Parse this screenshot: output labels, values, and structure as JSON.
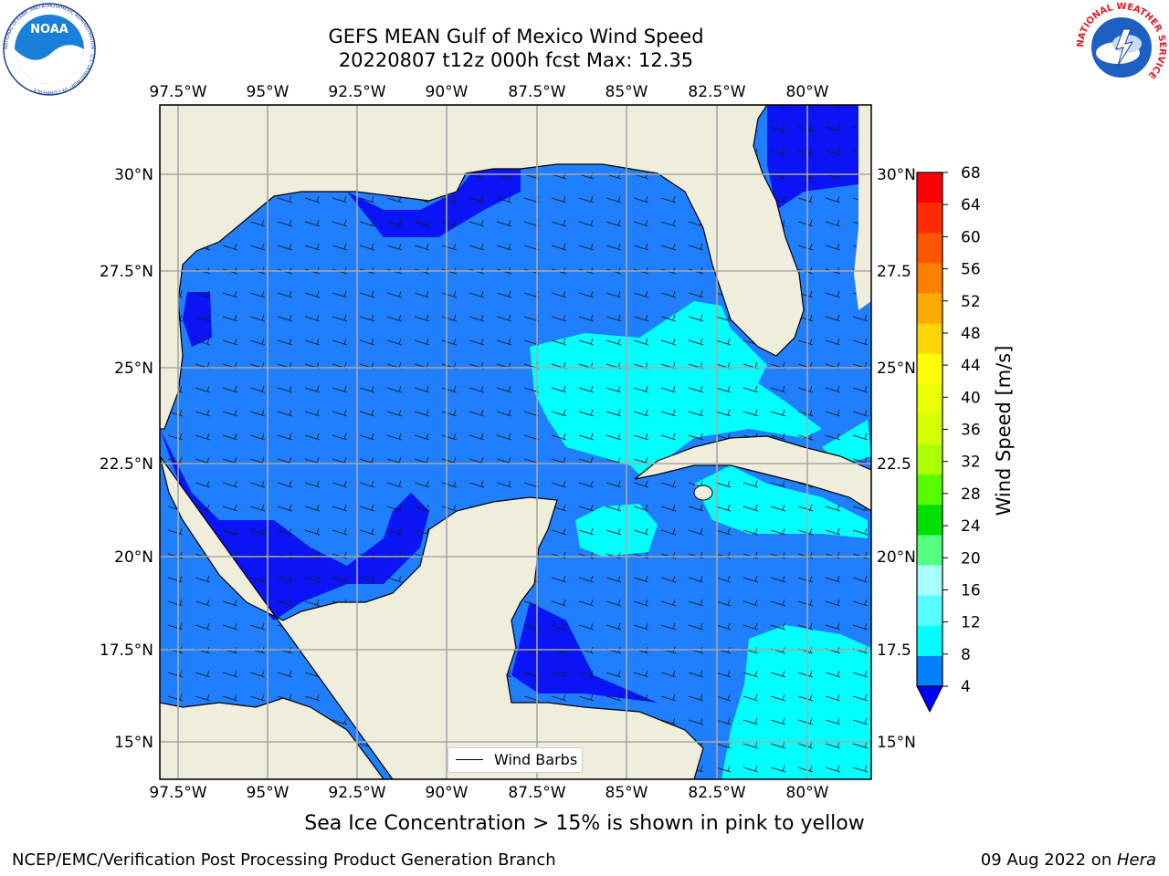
{
  "header": {
    "title_line1": "GEFS MEAN Gulf of Mexico Wind Speed",
    "title_line2": "20220807 t12z 000h fcst   Max: 12.35",
    "logo_left": "NOAA",
    "logo_left_ring": "NATIONAL OCEANIC AND ATMOSPHERIC ADMINISTRATION · U.S. DEPARTMENT OF COMMERCE",
    "logo_right_ring": "NATIONAL WEATHER SERVICE"
  },
  "map": {
    "lon_labels": [
      "97.5°W",
      "95°W",
      "92.5°W",
      "90°W",
      "87.5°W",
      "85°W",
      "82.5°W",
      "80°W"
    ],
    "lat_labels_left": [
      "30°N",
      "27.5°N",
      "25°N",
      "22.5°N",
      "20°N",
      "17.5°N",
      "15°N"
    ],
    "lat_labels_right": [
      "30°N",
      "27.5",
      "25°N",
      "22.5",
      "20°N",
      "17.5",
      "15°N"
    ],
    "legend_label": "Wind Barbs",
    "colors": {
      "land": "#efeddc",
      "ocean_4_8": "#1f7fff",
      "ocean_0_4": "#0a14f5",
      "ocean_8_12": "#00ffff"
    }
  },
  "colorbar": {
    "label": "Wind Speed [m/s]",
    "ticks": [
      "68",
      "64",
      "60",
      "56",
      "52",
      "48",
      "44",
      "40",
      "36",
      "32",
      "28",
      "24",
      "20",
      "16",
      "12",
      "8",
      "4"
    ],
    "colors": [
      "#ff0000",
      "#ff2a00",
      "#ff5500",
      "#ff8000",
      "#ffaa00",
      "#ffd400",
      "#ffff00",
      "#eaff00",
      "#d4ff00",
      "#aaff00",
      "#55ff00",
      "#00e000",
      "#55ff80",
      "#aaffff",
      "#55ffff",
      "#00ffff",
      "#0080ff"
    ],
    "under_color": "#0000ff"
  },
  "caption": "Sea Ice Concentration > 15% is shown in pink to yellow",
  "footer": {
    "left": "NCEP/EMC/Verification Post Processing Product Generation Branch",
    "right_prefix": "09 Aug 2022 on ",
    "right_host": "Hera"
  }
}
